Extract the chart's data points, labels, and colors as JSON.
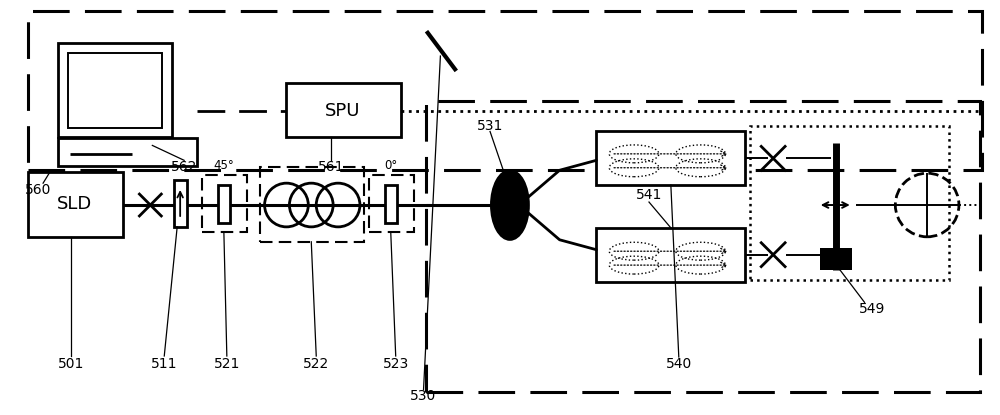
{
  "bg_color": "#ffffff",
  "fig_w": 10.0,
  "fig_h": 4.15,
  "dpi": 100
}
